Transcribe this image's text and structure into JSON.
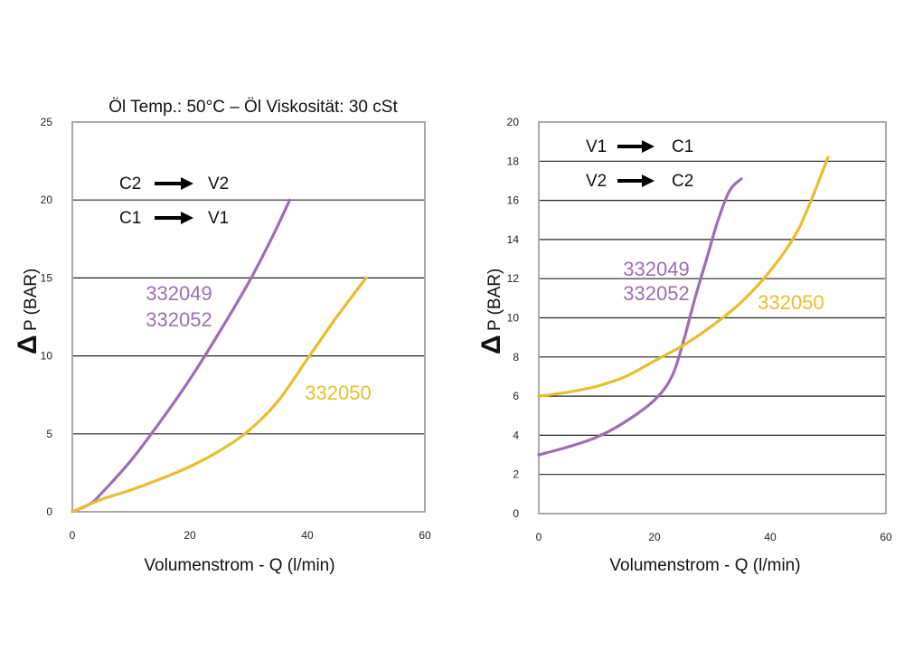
{
  "colors": {
    "purple": "#9B6FB3",
    "yellow": "#E8BE2E",
    "frame": "#AAAAAA",
    "grid": "#222222"
  },
  "chart_data": [
    {
      "type": "line",
      "title": "Öl Temp.: 50°C – Öl Viskosität: 30 cSt",
      "xlabel": "Volumenstrom - Q (l/min)",
      "ylabel_symbol": "Δ",
      "ylabel": "P (BAR)",
      "xlim": [
        0,
        60
      ],
      "ylim": [
        0,
        25
      ],
      "xticks": [
        "0",
        "20",
        "40",
        "60"
      ],
      "yticks": [
        "0",
        "5",
        "10",
        "15",
        "20",
        "25"
      ],
      "flow": [
        {
          "from": "C2",
          "to": "V2"
        },
        {
          "from": "C1",
          "to": "V1"
        }
      ],
      "series": [
        {
          "name": "332049 / 332052",
          "label_lines": [
            "332049",
            "332052"
          ],
          "color": "purple",
          "points": [
            [
              0,
              0
            ],
            [
              3,
              0.5
            ],
            [
              5,
              1.2
            ],
            [
              10,
              3.3
            ],
            [
              15,
              5.8
            ],
            [
              20,
              8.5
            ],
            [
              25,
              11.5
            ],
            [
              30,
              14.7
            ],
            [
              34,
              17.6
            ],
            [
              37,
              20
            ]
          ]
        },
        {
          "name": "332050",
          "label_lines": [
            "332050"
          ],
          "color": "yellow",
          "points": [
            [
              0,
              0
            ],
            [
              5,
              0.8
            ],
            [
              10,
              1.4
            ],
            [
              15,
              2.1
            ],
            [
              20,
              2.9
            ],
            [
              25,
              3.9
            ],
            [
              30,
              5.2
            ],
            [
              35,
              7.1
            ],
            [
              40,
              9.8
            ],
            [
              45,
              12.5
            ],
            [
              50,
              15
            ]
          ]
        }
      ]
    },
    {
      "type": "line",
      "title": "",
      "xlabel": "Volumenstrom - Q (l/min)",
      "ylabel_symbol": "Δ",
      "ylabel": "P (BAR)",
      "xlim": [
        0,
        60
      ],
      "ylim": [
        0,
        20
      ],
      "xticks": [
        "0",
        "20",
        "40",
        "60"
      ],
      "yticks": [
        "0",
        "2",
        "4",
        "6",
        "8",
        "10",
        "12",
        "14",
        "16",
        "18",
        "20"
      ],
      "flow": [
        {
          "from": "V1",
          "to": "C1"
        },
        {
          "from": "V2",
          "to": "C2"
        }
      ],
      "series": [
        {
          "name": "332049 / 332052",
          "label_lines": [
            "332049",
            "332052"
          ],
          "color": "purple",
          "points": [
            [
              0,
              3
            ],
            [
              5,
              3.4
            ],
            [
              10,
              3.9
            ],
            [
              15,
              4.7
            ],
            [
              20,
              5.8
            ],
            [
              23,
              7
            ],
            [
              25,
              8.8
            ],
            [
              27,
              11
            ],
            [
              29,
              13
            ],
            [
              31,
              15
            ],
            [
              33,
              16.5
            ],
            [
              35,
              17.1
            ]
          ]
        },
        {
          "name": "332050",
          "label_lines": [
            "332050"
          ],
          "color": "yellow",
          "points": [
            [
              0,
              6
            ],
            [
              5,
              6.2
            ],
            [
              10,
              6.5
            ],
            [
              15,
              7
            ],
            [
              20,
              7.8
            ],
            [
              25,
              8.6
            ],
            [
              30,
              9.6
            ],
            [
              35,
              10.8
            ],
            [
              40,
              12.4
            ],
            [
              45,
              14.6
            ],
            [
              50,
              18.2
            ]
          ]
        }
      ]
    }
  ]
}
